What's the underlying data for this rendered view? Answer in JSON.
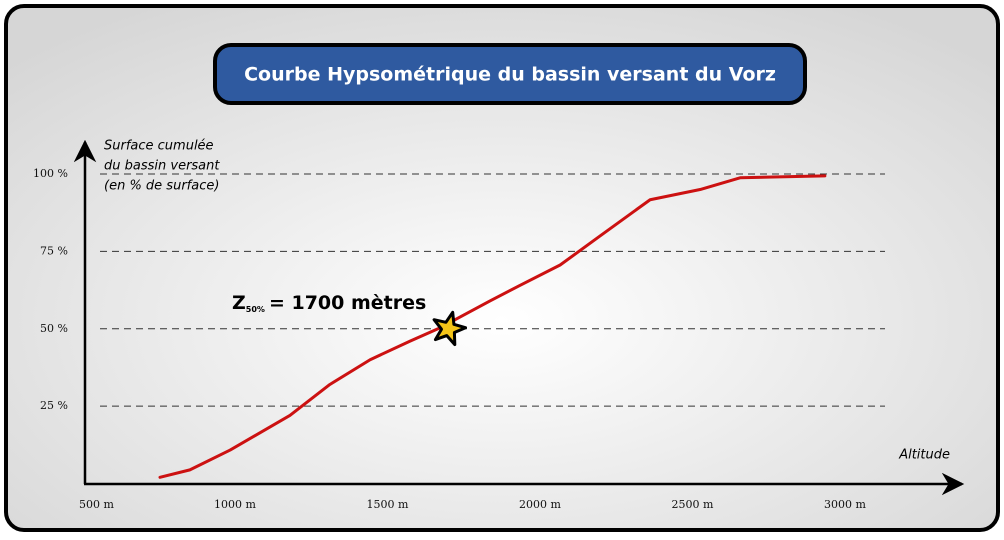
{
  "chart_data": {
    "type": "line",
    "title": "Courbe Hypsométrique du bassin versant du Vorz",
    "y_label": [
      "Surface cumulée",
      "du bassin versant",
      "(en % de surface)"
    ],
    "x_label": "Altitude",
    "x": [
      754,
      852,
      984,
      1180,
      1311,
      1443,
      1574,
      1672,
      1836,
      1934,
      2066,
      2197,
      2361,
      2525,
      2656,
      2934
    ],
    "series": [
      {
        "name": "Courbe hypsométrique",
        "color": "#cc1111",
        "values": [
          2,
          4.4,
          10.8,
          22,
          32,
          40,
          46,
          50.3,
          59,
          64,
          70.6,
          80,
          91.7,
          95,
          98.8,
          99.4
        ]
      }
    ],
    "xlim": [
      500,
      3375
    ],
    "ylim": [
      0,
      111
    ],
    "xticks": [
      {
        "value": 500,
        "label": "500 m"
      },
      {
        "value": 1000,
        "label": "1000 m"
      },
      {
        "value": 1500,
        "label": "1500 m"
      },
      {
        "value": 2000,
        "label": "2000 m"
      },
      {
        "value": 2500,
        "label": "2500 m"
      },
      {
        "value": 3000,
        "label": "3000 m"
      }
    ],
    "yticks": [
      {
        "value": 25,
        "label": "25 %"
      },
      {
        "value": 50,
        "label": "50 %"
      },
      {
        "value": 75,
        "label": "75 %"
      },
      {
        "value": 100,
        "label": "100 %"
      }
    ],
    "grid": true,
    "highlight": {
      "x": 1700,
      "y": 50,
      "color": "#f5c518"
    },
    "annotation": {
      "symbol": "Z",
      "subscript": "50%",
      "text": "= 1700 mètres"
    }
  }
}
